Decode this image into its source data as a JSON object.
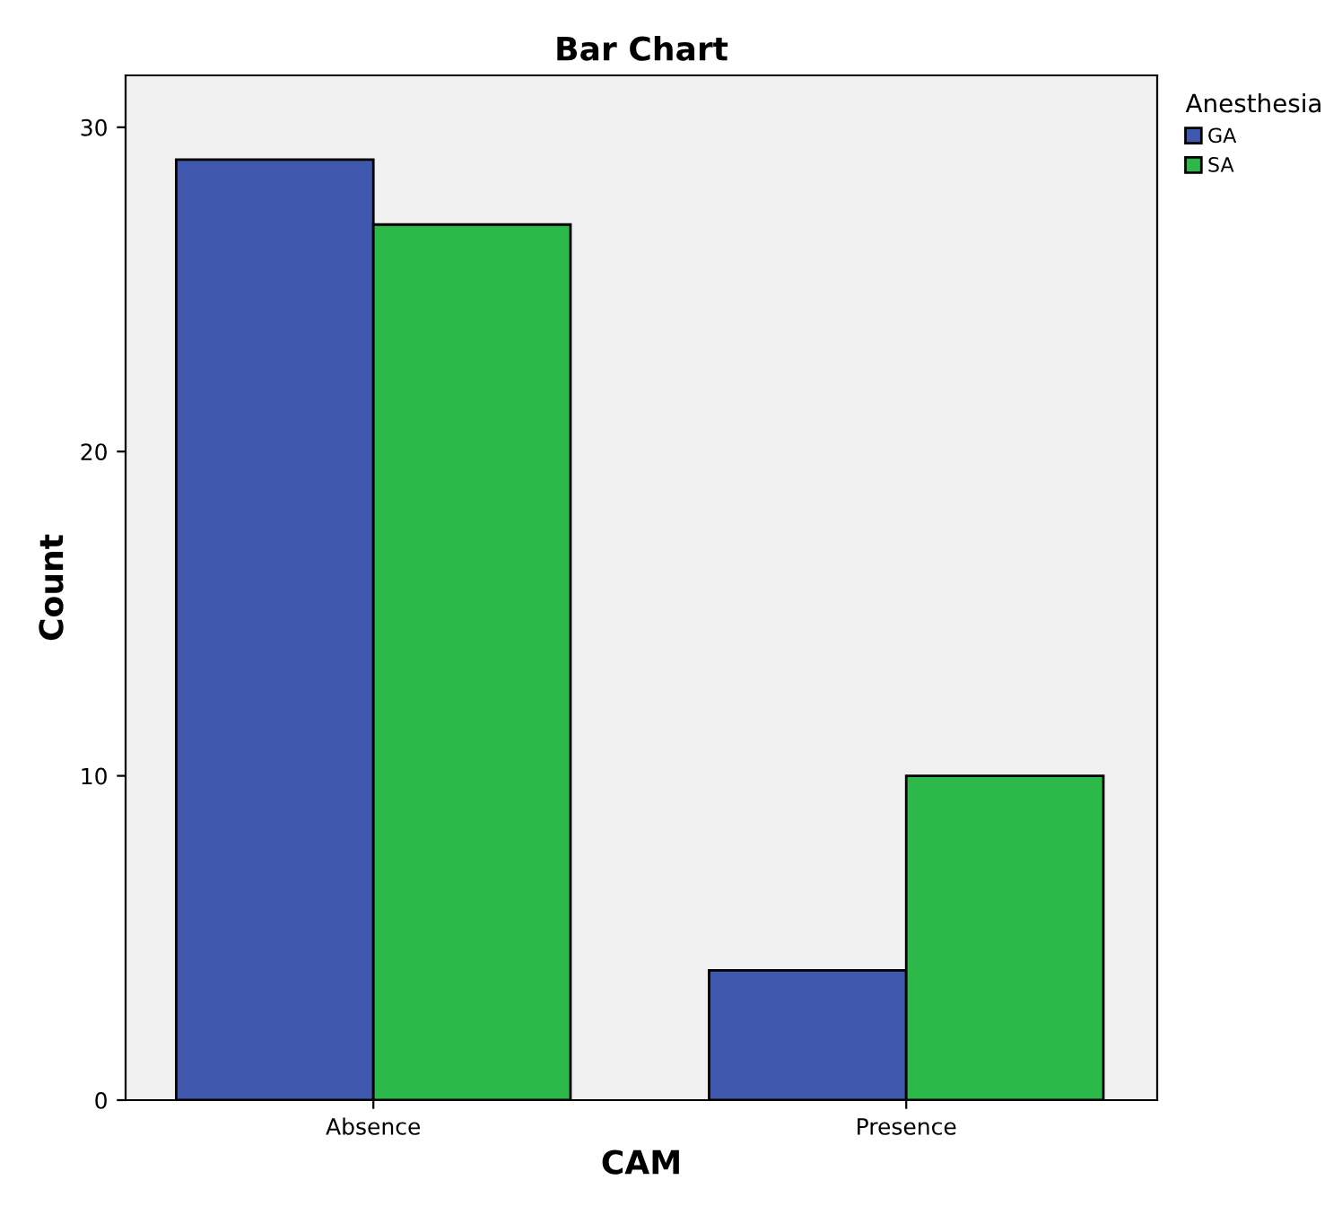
{
  "chart_data": {
    "type": "bar",
    "title": "Bar Chart",
    "xlabel": "CAM",
    "ylabel": "Count",
    "legend_title": "Anesthesia",
    "categories": [
      "Absence",
      "Presence"
    ],
    "series": [
      {
        "name": "GA",
        "color": "#3f58ad",
        "values": [
          29,
          4
        ]
      },
      {
        "name": "SA",
        "color": "#2db84a",
        "values": [
          27,
          10
        ]
      }
    ],
    "ylim": [
      0,
      31.6
    ],
    "yticks": [
      0,
      10,
      20,
      30
    ],
    "grid": false,
    "legend": "top right"
  }
}
